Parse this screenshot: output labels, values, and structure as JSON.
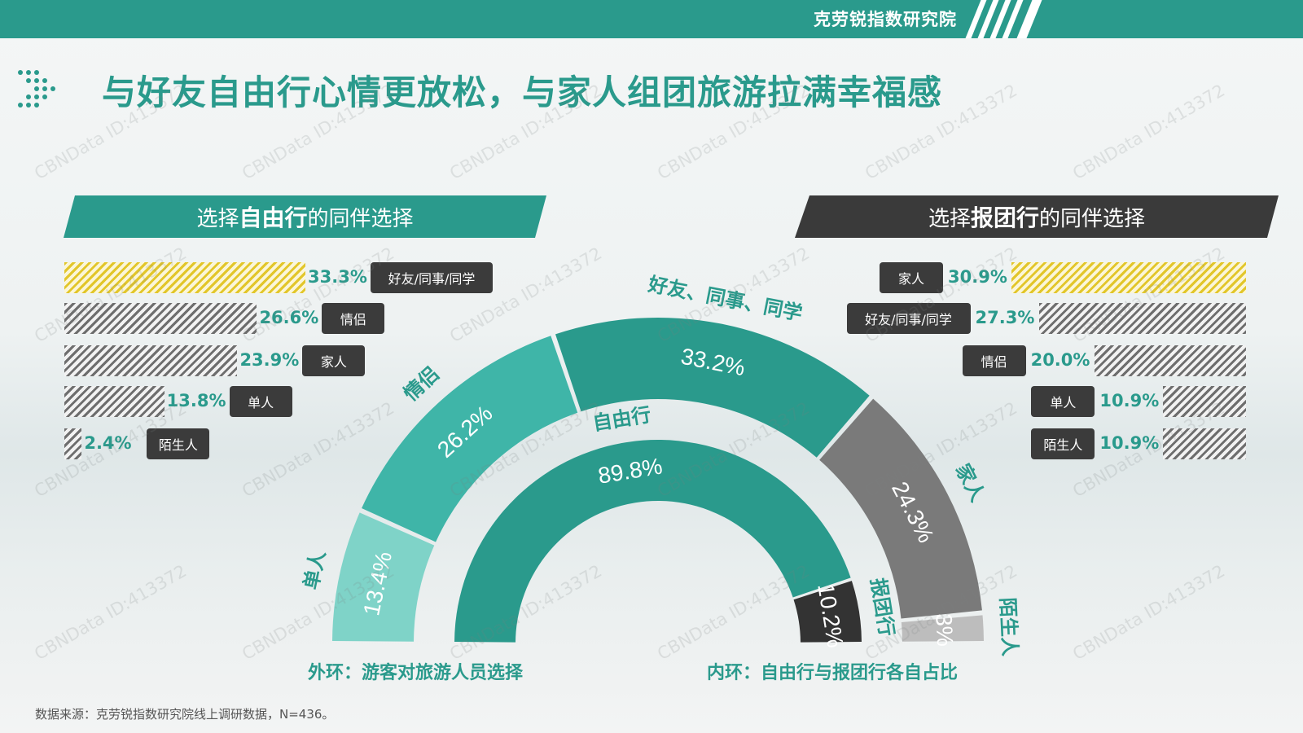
{
  "header": {
    "brand": "克劳锐指数研究院"
  },
  "page_title": "与好友自由行心情更放松，与家人组团旅游拉满幸福感",
  "left_panel": {
    "banner": {
      "pre": "选择",
      "bold": "自由行",
      "post": "的同伴选择"
    },
    "bars": [
      {
        "label": "好友/同事/同学",
        "value": 33.3,
        "text": "33.3%",
        "highlight": true
      },
      {
        "label": "情侣",
        "value": 26.6,
        "text": "26.6%",
        "highlight": false
      },
      {
        "label": "家人",
        "value": 23.9,
        "text": "23.9%",
        "highlight": false
      },
      {
        "label": "单人",
        "value": 13.8,
        "text": "13.8%",
        "highlight": false
      },
      {
        "label": "陌生人",
        "value": 2.4,
        "text": "2.4%",
        "highlight": false
      }
    ]
  },
  "right_panel": {
    "banner": {
      "pre": "选择",
      "bold": "报团行",
      "post": "的同伴选择"
    },
    "bars": [
      {
        "label": "家人",
        "value": 30.9,
        "text": "30.9%",
        "highlight": true
      },
      {
        "label": "好友/同事/同学",
        "value": 27.3,
        "text": "27.3%",
        "highlight": false
      },
      {
        "label": "情侣",
        "value": 20.0,
        "text": "20.0%",
        "highlight": false
      },
      {
        "label": "单人",
        "value": 10.9,
        "text": "10.9%",
        "highlight": false
      },
      {
        "label": "陌生人",
        "value": 10.9,
        "text": "10.9%",
        "highlight": false
      }
    ]
  },
  "chart_data": {
    "type": "pie",
    "subtype": "half-donut",
    "outer_ring": {
      "caption": "外环：游客对旅游人员选择",
      "slices": [
        {
          "name": "单人",
          "value": 13.4,
          "text": "13.4%",
          "color": "#7fd3c8"
        },
        {
          "name": "情侣",
          "value": 26.2,
          "text": "26.2%",
          "color": "#3fb5a8"
        },
        {
          "name": "好友、同事、同学",
          "value": 33.2,
          "text": "33.2%",
          "color": "#2a9a8c"
        },
        {
          "name": "家人",
          "value": 24.3,
          "text": "24.3%",
          "color": "#7a7a7a"
        },
        {
          "name": "陌生人",
          "value": 3,
          "text": "3%",
          "color": "#bdbdbd"
        }
      ]
    },
    "inner_ring": {
      "caption": "内环：自由行与报团行各自占比",
      "slices": [
        {
          "name": "自由行",
          "value": 89.8,
          "text": "89.8%",
          "color": "#2a9a8c"
        },
        {
          "name": "报团行",
          "value": 10.2,
          "text": "10.2%",
          "color": "#333333"
        }
      ]
    }
  },
  "colors": {
    "accent": "#2a9a8c",
    "dark": "#3a3a3a",
    "highlight": "#e2c62a"
  },
  "footer": {
    "source": "数据来源：克劳锐指数研究院线上调研数据，N=436。"
  }
}
